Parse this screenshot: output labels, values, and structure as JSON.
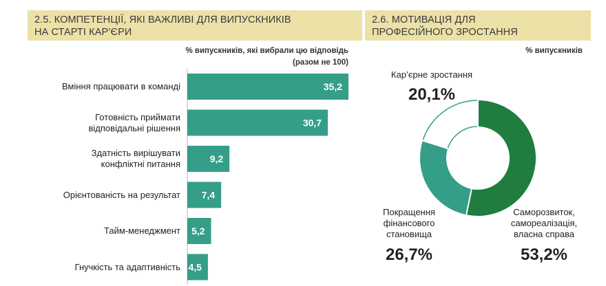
{
  "left_panel": {
    "title_line1": "2.5. КОМПЕТЕНЦІЇ, ЯКІ ВАЖЛИВІ ДЛЯ ВИПУСКНИКІВ",
    "title_line2": "НА СТАРТІ КАР’ЄРИ",
    "note_line1": "% випускників, які вибрали цю відповідь",
    "note_line2": "(разом не 100)"
  },
  "right_panel": {
    "title_line1": "2.6. МОТИВАЦІЯ ДЛЯ",
    "title_line2": "ПРОФЕСІЙНОГО ЗРОСТАННЯ",
    "note": "% випускників"
  },
  "chart_data": [
    {
      "type": "bar",
      "orientation": "horizontal",
      "title": "2.5. КОМПЕТЕНЦІЇ, ЯКІ ВАЖЛИВІ ДЛЯ ВИПУСКНИКІВ НА СТАРТІ КАР’ЄРИ",
      "unit_note": "% випускників, які вибрали цю відповідь (разом не 100)",
      "categories": [
        "Вміння працювати в команді",
        "Готовність приймати відповідальні рішення",
        "Здатність вирішувати конфліктні питання",
        "Орієнтованість на результат",
        "Тайм-менеджмент",
        "Гнучкість та адаптивність"
      ],
      "category_lines": [
        [
          "Вміння працювати в команді"
        ],
        [
          "Готовність приймати",
          "відповідальні рішення"
        ],
        [
          "Здатність вирішувати",
          "конфліктні питання"
        ],
        [
          "Орієнтованість на результат"
        ],
        [
          "Тайм-менеджмент"
        ],
        [
          "Гнучкість та адаптивність"
        ]
      ],
      "values": [
        35.2,
        30.7,
        9.2,
        7.4,
        5.2,
        4.5
      ],
      "value_labels": [
        "35,2",
        "30,7",
        "9,2",
        "7,4",
        "5,2",
        "4,5"
      ],
      "bar_color": "#349e89"
    },
    {
      "type": "pie",
      "style": "donut",
      "title": "2.6. МОТИВАЦІЯ ДЛЯ ПРОФЕСІЙНОГО ЗРОСТАННЯ",
      "unit_note": "% випускників",
      "slices": [
        {
          "label": "Саморозвиток, самореалізація, власна справа",
          "label_lines": [
            "Саморозвиток,",
            "самореалізація,",
            "власна справа"
          ],
          "value": 53.2,
          "value_label": "53,2%",
          "color": "#1e7d3f"
        },
        {
          "label": "Покращення фінансового становища",
          "label_lines": [
            "Покращення",
            "фінансового",
            "становища"
          ],
          "value": 26.7,
          "value_label": "26,7%",
          "color": "#349e89"
        },
        {
          "label": "Кар’єрне зростання",
          "label_lines": [
            "Кар’єрне зростання"
          ],
          "value": 20.1,
          "value_label": "20,1%",
          "color": "#ffffff"
        }
      ]
    }
  ]
}
